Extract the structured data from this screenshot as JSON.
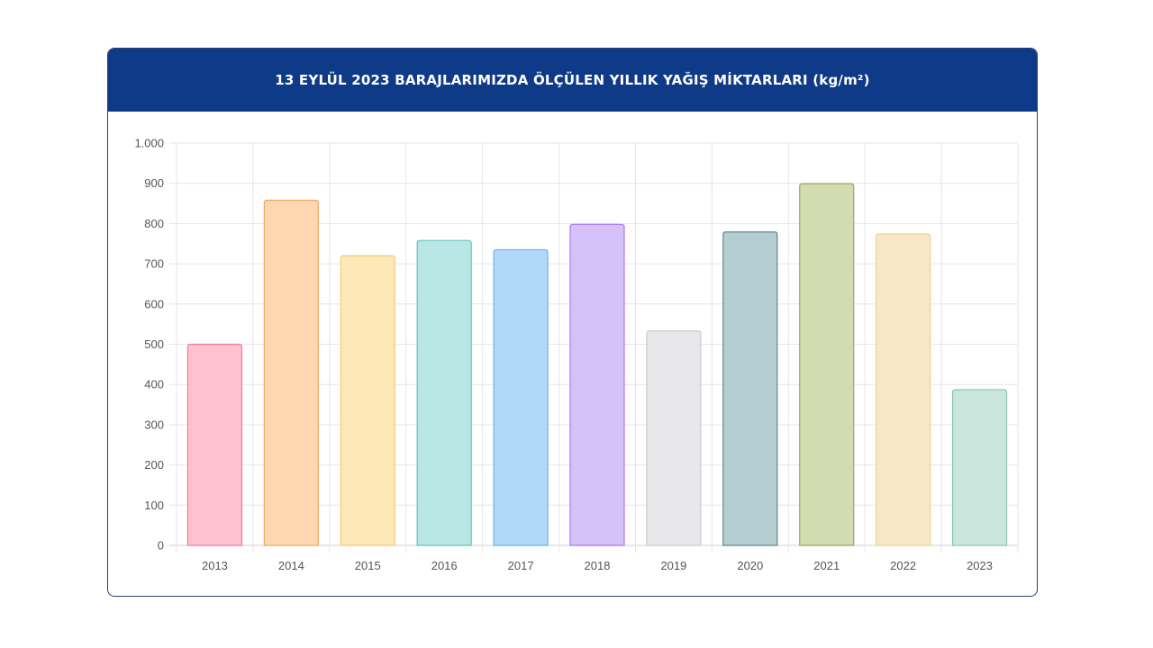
{
  "header": {
    "title": "13 EYLÜL 2023 BARAJLARIMIZDA ÖLÇÜLEN YILLIK YAĞIŞ MİKTARLARI (kg/m²)"
  },
  "chart_data": {
    "type": "bar",
    "title": "13 EYLÜL 2023 BARAJLARIMIZDA ÖLÇÜLEN YILLIK YAĞIŞ MİKTARLARI (kg/m²)",
    "xlabel": "",
    "ylabel": "",
    "categories": [
      "2013",
      "2014",
      "2015",
      "2016",
      "2017",
      "2018",
      "2019",
      "2020",
      "2021",
      "2022",
      "2023"
    ],
    "values": [
      500,
      858,
      720,
      758,
      735,
      798,
      533,
      779,
      899,
      774,
      387
    ],
    "ylim": [
      0,
      1000
    ],
    "yticks": [
      0,
      100,
      200,
      300,
      400,
      500,
      600,
      700,
      800,
      900,
      1000
    ],
    "ytick_labels": [
      "0",
      "100",
      "200",
      "300",
      "400",
      "500",
      "600",
      "700",
      "800",
      "900",
      "1.000"
    ],
    "grid": true,
    "legend": "none",
    "bar_fill_colors": [
      "#ffc1cf",
      "#fdd7b0",
      "#fde8b8",
      "#b8e7e6",
      "#b1d8f7",
      "#d6c2fb",
      "#e8e8ea",
      "#b5ced1",
      "#d3dbb0",
      "#f8e8c8",
      "#cbe7dd"
    ],
    "bar_border_colors": [
      "#f07b96",
      "#eea85e",
      "#f2cc7a",
      "#62c4c1",
      "#66b6ee",
      "#a679f2",
      "#c9cacd",
      "#5f888d",
      "#9aa85c",
      "#ecd193",
      "#89c7b2"
    ]
  }
}
